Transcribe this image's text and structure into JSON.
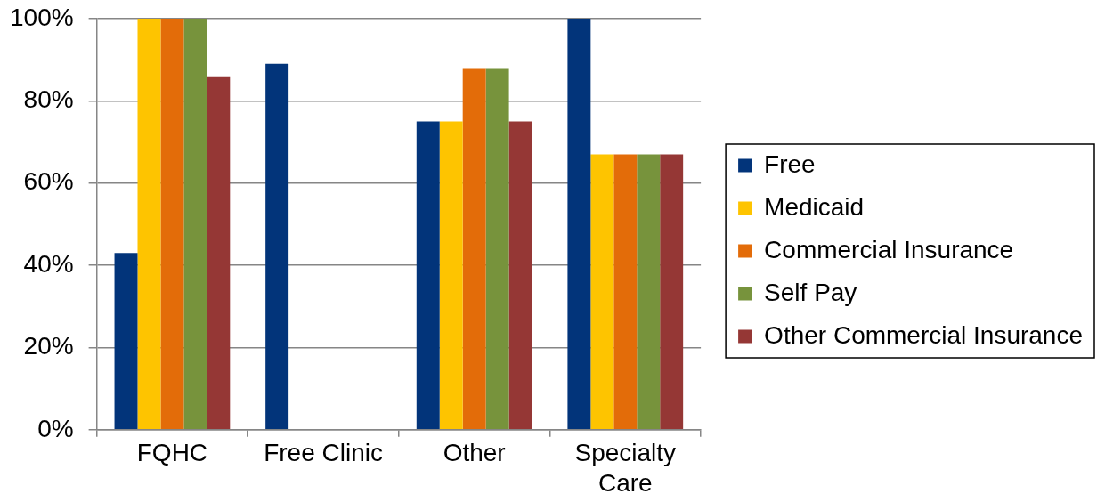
{
  "chart_data": {
    "type": "bar",
    "categories": [
      "FQHC",
      "Free Clinic",
      "Other",
      "Specialty Care"
    ],
    "series": [
      {
        "name": "Free",
        "color": "#02347a",
        "values": [
          43,
          89,
          75,
          100
        ]
      },
      {
        "name": "Medicaid",
        "color": "#fec400",
        "values": [
          100,
          null,
          75,
          67
        ]
      },
      {
        "name": "Commercial Insurance",
        "color": "#e36c09",
        "values": [
          100,
          null,
          88,
          67
        ]
      },
      {
        "name": "Self Pay",
        "color": "#77933c",
        "values": [
          100,
          null,
          88,
          67
        ]
      },
      {
        "name": "Other Commercial Insurance",
        "color": "#953735",
        "values": [
          86,
          null,
          75,
          67
        ]
      }
    ],
    "ylim": [
      0,
      100
    ],
    "yticks": [
      {
        "value": 0,
        "label": "0%"
      },
      {
        "value": 20,
        "label": "20%"
      },
      {
        "value": 40,
        "label": "40%"
      },
      {
        "value": 60,
        "label": "60%"
      },
      {
        "value": 80,
        "label": "80%"
      },
      {
        "value": 100,
        "label": "100%"
      }
    ],
    "grid": "y",
    "legend": "right"
  }
}
